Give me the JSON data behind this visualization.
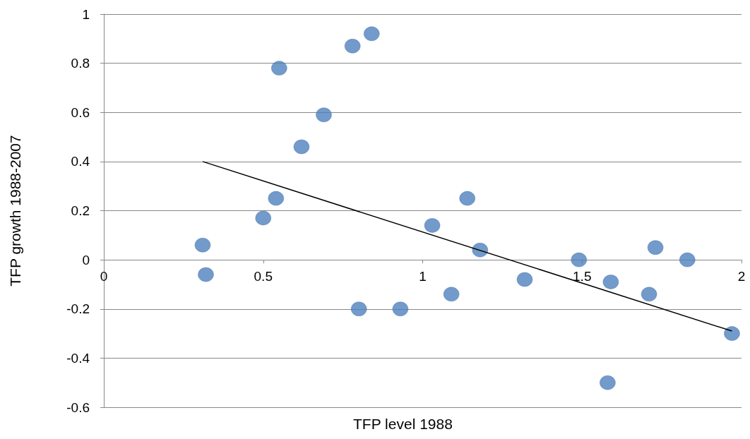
{
  "chart_data": {
    "type": "scatter",
    "xlabel": "TFP level 1988",
    "ylabel": "TFP growth 1988-2007",
    "xlim": [
      0,
      2
    ],
    "xticks": [
      0,
      0.5,
      1,
      1.5,
      2
    ],
    "ylim": [
      -0.6,
      1
    ],
    "yticks": [
      -0.6,
      -0.4,
      -0.2,
      0,
      0.2,
      0.4,
      0.6,
      0.8,
      1
    ],
    "grid": "y",
    "marker": "circle",
    "series": [
      {
        "color": "#4f81bd",
        "x": [
          0.31,
          0.32,
          0.5,
          0.54,
          0.55,
          0.62,
          0.69,
          0.78,
          0.8,
          0.84,
          0.93,
          1.03,
          1.09,
          1.14,
          1.18,
          1.32,
          1.49,
          1.59,
          1.58,
          1.71,
          1.73,
          1.83,
          1.97
        ],
        "values": [
          0.06,
          -0.06,
          0.17,
          0.25,
          0.78,
          0.46,
          0.59,
          0.87,
          -0.2,
          0.92,
          -0.2,
          0.14,
          -0.14,
          0.25,
          0.04,
          -0.08,
          0,
          -0.09,
          -0.5,
          -0.14,
          0.05,
          0,
          -0.3
        ]
      },
      {
        "type": "line",
        "color": "#000000",
        "marker": "none",
        "x": [
          0.31,
          1.97
        ],
        "values": [
          0.4,
          -0.29
        ]
      }
    ]
  }
}
